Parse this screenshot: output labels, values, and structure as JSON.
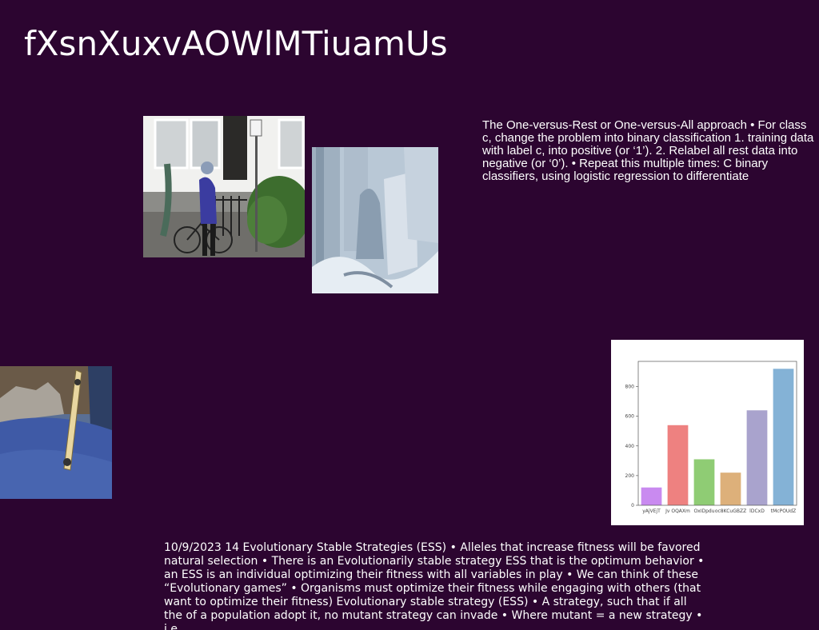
{
  "slide": {
    "title": "fXsnXuxvAOWlMTiuamUs",
    "right_text": "The One-versus-Rest or One-versus-All approach • For class c, change the problem into binary classification 1. training data with label c, into positive (or ‘1’). 2. Relabel all rest data into negative (or ‘0’). • Repeat this multiple times: C binary classifiers, using logistic regression to differentiate",
    "bottom_text": "10/9/2023 14 Evolutionary Stable Strategies (ESS) • Alleles that increase fitness will be favored natural selection • There is an Evolutionarily stable strategy ESS that is the optimum behavior • an ESS is an individual optimizing their fitness with all variables in play • We can think of these “Evolutionary games” • Organisms must optimize their fitness while engaging with others (that want to optimize their fitness) Evolutionary stable strategy (ESS) • A strategy, such that if all the of a population adopt it, no mutant strategy can invade • Where mutant =  a new strategy • i.e."
  },
  "chart_data": {
    "type": "bar",
    "categories": [
      "yAjVEjT",
      "Jv OQAXm",
      "OxIDpdu",
      "oc8KCuGBZZ",
      "lDCxD",
      "tMcPOUdZ"
    ],
    "values": [
      120,
      540,
      310,
      220,
      640,
      920
    ],
    "colors": [
      "#c98af0",
      "#ee8180",
      "#8fcc74",
      "#ddb07a",
      "#a9a3cd",
      "#84b2d6"
    ],
    "yticks": [
      0,
      200,
      400,
      600,
      800
    ],
    "ylim": [
      0,
      970
    ],
    "title": "",
    "xlabel": "",
    "ylabel": ""
  }
}
